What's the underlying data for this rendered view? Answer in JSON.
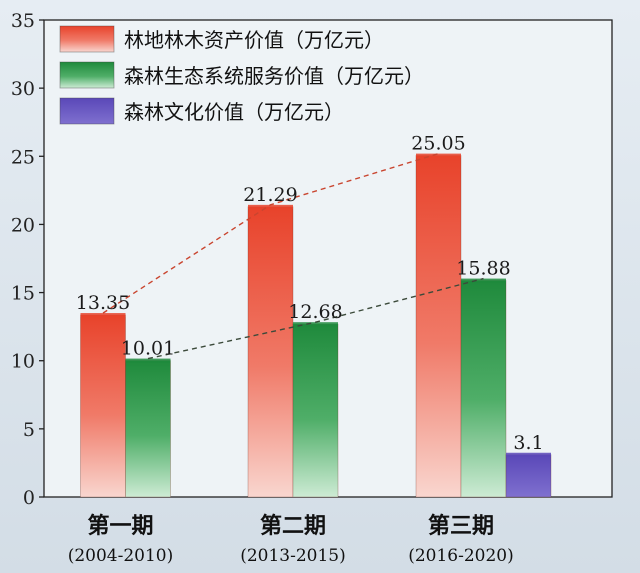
{
  "chart_data": {
    "type": "bar",
    "categories": [
      {
        "label": "第一期",
        "period": "(2004-2010)"
      },
      {
        "label": "第二期",
        "period": "(2013-2015)"
      },
      {
        "label": "第三期",
        "period": "(2016-2020)"
      }
    ],
    "series": [
      {
        "name": "林地林木资产价值（万亿元）",
        "values": [
          13.35,
          21.29,
          25.05
        ],
        "color": "#e8432b"
      },
      {
        "name": "森林生态系统服务价值（万亿元）",
        "values": [
          10.01,
          12.68,
          15.88
        ],
        "color": "#1f8a3c"
      },
      {
        "name": "森林文化价值（万亿元）",
        "values": [
          null,
          null,
          3.1
        ],
        "color": "#5a48b8"
      }
    ],
    "data_labels": [
      [
        "13.35",
        "21.29",
        "25.05"
      ],
      [
        "10.01",
        "12.68",
        "15.88"
      ],
      [
        "",
        "",
        "3.1"
      ]
    ],
    "ylim": [
      0,
      35
    ],
    "yticks": [
      "0",
      "5",
      "10",
      "15",
      "20",
      "25",
      "30",
      "35"
    ],
    "legend_position": "top-left",
    "trend_lines": true,
    "grid": false,
    "title": "",
    "xlabel": "",
    "ylabel": ""
  }
}
